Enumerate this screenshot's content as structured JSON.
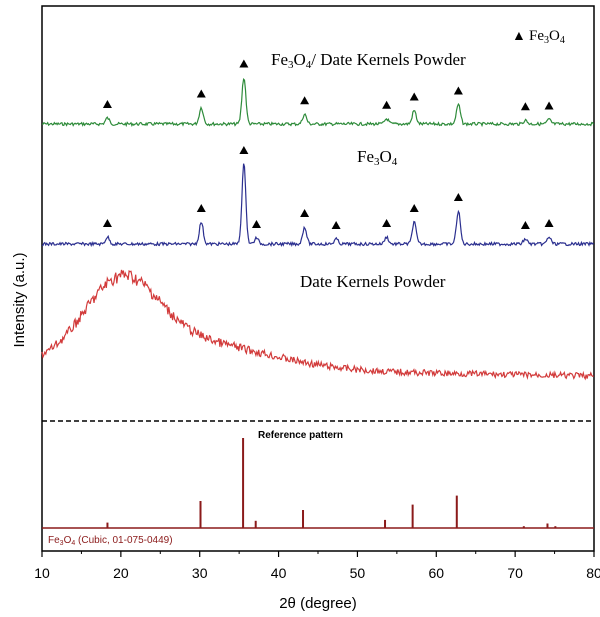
{
  "chart_data": {
    "type": "line",
    "xlabel": "2θ (degree)",
    "ylabel": "Intensity (a.u.)",
    "xlim": [
      10,
      80
    ],
    "x_ticks": [
      10,
      20,
      30,
      40,
      50,
      60,
      70,
      80
    ],
    "grid": false,
    "legend": {
      "position": "top-right",
      "marker": "▲",
      "label_main": "Fe",
      "label_sub1": "3",
      "label_mid": "O",
      "label_sub2": "4"
    },
    "series": [
      {
        "name": "Fe3O4/ Date Kernels Powder",
        "label_parts": [
          "Fe",
          "3",
          "O",
          "4",
          "/ Date Kernels Powder"
        ],
        "color": "#2e8b3a",
        "peaks": [
          {
            "x": 18.3,
            "h": 0.08
          },
          {
            "x": 30.2,
            "h": 0.22
          },
          {
            "x": 35.6,
            "h": 0.62
          },
          {
            "x": 43.3,
            "h": 0.13
          },
          {
            "x": 53.7,
            "h": 0.07
          },
          {
            "x": 57.2,
            "h": 0.18
          },
          {
            "x": 62.8,
            "h": 0.26
          },
          {
            "x": 71.3,
            "h": 0.05
          },
          {
            "x": 74.3,
            "h": 0.06
          }
        ],
        "triangles": [
          18.3,
          30.2,
          35.6,
          43.3,
          53.7,
          57.2,
          62.8,
          71.3,
          74.3
        ]
      },
      {
        "name": "Fe3O4",
        "label_parts": [
          "Fe",
          "3",
          "O",
          "4",
          ""
        ],
        "color": "#2b2f8f",
        "peaks": [
          {
            "x": 18.3,
            "h": 0.07
          },
          {
            "x": 30.2,
            "h": 0.22
          },
          {
            "x": 35.6,
            "h": 0.8
          },
          {
            "x": 37.2,
            "h": 0.06
          },
          {
            "x": 43.3,
            "h": 0.17
          },
          {
            "x": 47.3,
            "h": 0.05
          },
          {
            "x": 53.7,
            "h": 0.07
          },
          {
            "x": 57.2,
            "h": 0.22
          },
          {
            "x": 62.8,
            "h": 0.33
          },
          {
            "x": 71.3,
            "h": 0.05
          },
          {
            "x": 74.3,
            "h": 0.07
          }
        ],
        "triangles": [
          18.3,
          30.2,
          35.6,
          37.2,
          43.3,
          47.3,
          53.7,
          57.2,
          62.8,
          71.3,
          74.3
        ]
      },
      {
        "name": "Date Kernels Powder",
        "label_parts": [
          "Date Kernels Powder",
          "",
          "",
          "",
          ""
        ],
        "color": "#d23b3b",
        "broad_hump": true
      }
    ],
    "reference": {
      "title": "Reference pattern",
      "label_parts": [
        "Fe",
        "3",
        "O",
        "4",
        " (Cubic, 01-075-0449)"
      ],
      "color": "#8b1a1a",
      "lines": [
        {
          "x": 18.3,
          "h": 0.06
        },
        {
          "x": 30.1,
          "h": 0.3
        },
        {
          "x": 35.5,
          "h": 1.0
        },
        {
          "x": 37.1,
          "h": 0.08
        },
        {
          "x": 43.1,
          "h": 0.2
        },
        {
          "x": 53.5,
          "h": 0.09
        },
        {
          "x": 57.0,
          "h": 0.26
        },
        {
          "x": 62.6,
          "h": 0.36
        },
        {
          "x": 71.1,
          "h": 0.02
        },
        {
          "x": 74.1,
          "h": 0.05
        },
        {
          "x": 75.1,
          "h": 0.02
        }
      ]
    }
  }
}
